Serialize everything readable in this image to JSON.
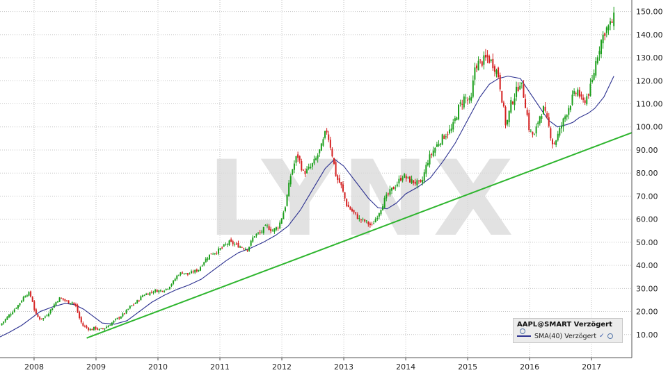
{
  "chart_data": {
    "type": "line",
    "watermark": "LYNX",
    "x_tick_labels": [
      "2008",
      "2009",
      "2010",
      "2011",
      "2012",
      "2013",
      "2014",
      "2015",
      "2016",
      "2017"
    ],
    "y_tick_labels": [
      "10.00",
      "20.00",
      "30.00",
      "40.00",
      "50.00",
      "60.00",
      "70.00",
      "80.00",
      "90.00",
      "100.00",
      "110.00",
      "120.00",
      "130.00",
      "140.00",
      "150.00"
    ],
    "xlim": [
      2007.45,
      2017.65
    ],
    "ylim": [
      0,
      155
    ],
    "grid": true,
    "legend_position": "bottom-right",
    "legend": {
      "title": "AAPL@SMART Verzögert",
      "series_label": "SMA(40) Verzögert"
    },
    "colors": {
      "up": "#1a9e1a",
      "down": "#d42020",
      "sma": "#2a2f8f",
      "trend": "#2db52d",
      "grid": "#c4c4c4"
    },
    "series": [
      {
        "name": "AAPL@SMART Verzögert",
        "style": "candles",
        "points": [
          [
            2007.45,
            14
          ],
          [
            2007.55,
            17
          ],
          [
            2007.65,
            20
          ],
          [
            2007.75,
            23
          ],
          [
            2007.85,
            27
          ],
          [
            2007.92,
            28
          ],
          [
            2007.97,
            25
          ],
          [
            2008.02,
            19
          ],
          [
            2008.08,
            17
          ],
          [
            2008.15,
            17
          ],
          [
            2008.25,
            20
          ],
          [
            2008.35,
            24
          ],
          [
            2008.42,
            26
          ],
          [
            2008.48,
            25
          ],
          [
            2008.55,
            24
          ],
          [
            2008.62,
            24
          ],
          [
            2008.68,
            22
          ],
          [
            2008.72,
            18
          ],
          [
            2008.78,
            14
          ],
          [
            2008.85,
            13
          ],
          [
            2008.92,
            12
          ],
          [
            2008.98,
            13
          ],
          [
            2009.05,
            12
          ],
          [
            2009.15,
            13
          ],
          [
            2009.25,
            15
          ],
          [
            2009.35,
            17
          ],
          [
            2009.45,
            19
          ],
          [
            2009.55,
            22
          ],
          [
            2009.65,
            24
          ],
          [
            2009.75,
            27
          ],
          [
            2009.85,
            28
          ],
          [
            2009.95,
            29
          ],
          [
            2010.05,
            29
          ],
          [
            2010.15,
            30
          ],
          [
            2010.25,
            33
          ],
          [
            2010.32,
            36
          ],
          [
            2010.4,
            37
          ],
          [
            2010.48,
            36
          ],
          [
            2010.55,
            37
          ],
          [
            2010.65,
            38
          ],
          [
            2010.75,
            42
          ],
          [
            2010.85,
            45
          ],
          [
            2010.95,
            46
          ],
          [
            2011.05,
            48
          ],
          [
            2011.15,
            50
          ],
          [
            2011.25,
            49
          ],
          [
            2011.35,
            48
          ],
          [
            2011.45,
            47
          ],
          [
            2011.55,
            53
          ],
          [
            2011.65,
            54
          ],
          [
            2011.75,
            57
          ],
          [
            2011.85,
            55
          ],
          [
            2011.95,
            57
          ],
          [
            2012.05,
            65
          ],
          [
            2012.15,
            80
          ],
          [
            2012.25,
            88
          ],
          [
            2012.35,
            80
          ],
          [
            2012.45,
            82
          ],
          [
            2012.55,
            86
          ],
          [
            2012.65,
            92
          ],
          [
            2012.72,
            99
          ],
          [
            2012.8,
            90
          ],
          [
            2012.88,
            78
          ],
          [
            2012.95,
            75
          ],
          [
            2013.05,
            66
          ],
          [
            2013.15,
            63
          ],
          [
            2013.25,
            60
          ],
          [
            2013.35,
            59
          ],
          [
            2013.45,
            57
          ],
          [
            2013.55,
            62
          ],
          [
            2013.65,
            68
          ],
          [
            2013.75,
            72
          ],
          [
            2013.85,
            75
          ],
          [
            2013.95,
            79
          ],
          [
            2014.05,
            77
          ],
          [
            2014.15,
            76
          ],
          [
            2014.25,
            75
          ],
          [
            2014.35,
            85
          ],
          [
            2014.45,
            90
          ],
          [
            2014.55,
            94
          ],
          [
            2014.65,
            97
          ],
          [
            2014.75,
            99
          ],
          [
            2014.85,
            108
          ],
          [
            2014.95,
            113
          ],
          [
            2015.05,
            110
          ],
          [
            2015.12,
            127
          ],
          [
            2015.22,
            128
          ],
          [
            2015.32,
            130
          ],
          [
            2015.42,
            127
          ],
          [
            2015.5,
            122
          ],
          [
            2015.55,
            113
          ],
          [
            2015.62,
            100
          ],
          [
            2015.7,
            110
          ],
          [
            2015.78,
            115
          ],
          [
            2015.85,
            120
          ],
          [
            2015.92,
            112
          ],
          [
            2016.0,
            98
          ],
          [
            2016.08,
            96
          ],
          [
            2016.15,
            104
          ],
          [
            2016.22,
            108
          ],
          [
            2016.3,
            101
          ],
          [
            2016.38,
            92
          ],
          [
            2016.45,
            96
          ],
          [
            2016.55,
            103
          ],
          [
            2016.62,
            108
          ],
          [
            2016.7,
            113
          ],
          [
            2016.78,
            116
          ],
          [
            2016.85,
            110
          ],
          [
            2016.92,
            113
          ],
          [
            2017.0,
            118
          ],
          [
            2017.08,
            130
          ],
          [
            2017.15,
            137
          ],
          [
            2017.22,
            142
          ],
          [
            2017.3,
            144
          ],
          [
            2017.36,
            147
          ]
        ]
      },
      {
        "name": "SMA(40) Verzögert",
        "style": "line",
        "points": [
          [
            2007.45,
            9
          ],
          [
            2007.6,
            11
          ],
          [
            2007.8,
            14
          ],
          [
            2007.95,
            17
          ],
          [
            2008.1,
            20
          ],
          [
            2008.3,
            22
          ],
          [
            2008.5,
            23.5
          ],
          [
            2008.65,
            23
          ],
          [
            2008.8,
            21
          ],
          [
            2008.95,
            18
          ],
          [
            2009.1,
            15
          ],
          [
            2009.3,
            14.5
          ],
          [
            2009.5,
            16
          ],
          [
            2009.7,
            20
          ],
          [
            2009.9,
            24
          ],
          [
            2010.1,
            27
          ],
          [
            2010.3,
            29.5
          ],
          [
            2010.5,
            31.5
          ],
          [
            2010.7,
            34
          ],
          [
            2010.9,
            38
          ],
          [
            2011.1,
            42
          ],
          [
            2011.3,
            45.5
          ],
          [
            2011.5,
            47.5
          ],
          [
            2011.7,
            50
          ],
          [
            2011.9,
            53
          ],
          [
            2012.1,
            57
          ],
          [
            2012.3,
            64
          ],
          [
            2012.5,
            73
          ],
          [
            2012.7,
            82
          ],
          [
            2012.85,
            86
          ],
          [
            2013.0,
            83
          ],
          [
            2013.2,
            76
          ],
          [
            2013.4,
            69
          ],
          [
            2013.55,
            65
          ],
          [
            2013.7,
            64.5
          ],
          [
            2013.85,
            67
          ],
          [
            2014.0,
            71
          ],
          [
            2014.2,
            74
          ],
          [
            2014.4,
            78
          ],
          [
            2014.6,
            85
          ],
          [
            2014.8,
            93
          ],
          [
            2015.0,
            103
          ],
          [
            2015.2,
            113
          ],
          [
            2015.35,
            118.5
          ],
          [
            2015.5,
            121
          ],
          [
            2015.65,
            122
          ],
          [
            2015.85,
            121
          ],
          [
            2016.0,
            115
          ],
          [
            2016.15,
            109
          ],
          [
            2016.3,
            103
          ],
          [
            2016.45,
            100
          ],
          [
            2016.6,
            101
          ],
          [
            2016.7,
            102
          ],
          [
            2016.8,
            104
          ],
          [
            2016.95,
            106
          ],
          [
            2017.05,
            108
          ],
          [
            2017.2,
            113
          ],
          [
            2017.36,
            122
          ]
        ]
      },
      {
        "name": "trendline",
        "style": "line",
        "points": [
          [
            2008.85,
            8.5
          ],
          [
            2017.65,
            97.5
          ]
        ]
      }
    ]
  }
}
